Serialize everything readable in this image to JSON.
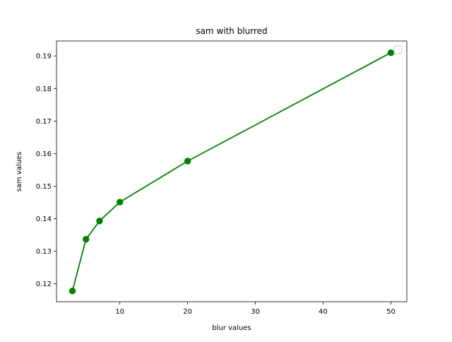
{
  "chart_data": {
    "type": "line",
    "title": "sam with blurred",
    "xlabel": "blur values",
    "ylabel": "sam values",
    "xlim": [
      0.65,
      52.35
    ],
    "ylim": [
      0.1145,
      0.1946
    ],
    "xticks": [
      10,
      20,
      30,
      40,
      50
    ],
    "xtick_labels": [
      "10",
      "20",
      "30",
      "40",
      "50"
    ],
    "yticks": [
      0.12,
      0.13,
      0.14,
      0.15,
      0.16,
      0.17,
      0.18,
      0.19
    ],
    "ytick_labels": [
      "0.12",
      "0.13",
      "0.14",
      "0.15",
      "0.16",
      "0.17",
      "0.18",
      "0.19"
    ],
    "grid": false,
    "legend": "top-right (empty)",
    "series": [
      {
        "color": "#008000",
        "marker": "circle",
        "x": [
          3,
          5,
          7,
          10,
          20,
          50
        ],
        "y": [
          0.1178,
          0.1337,
          0.1393,
          0.1451,
          0.1577,
          0.191
        ]
      }
    ]
  }
}
